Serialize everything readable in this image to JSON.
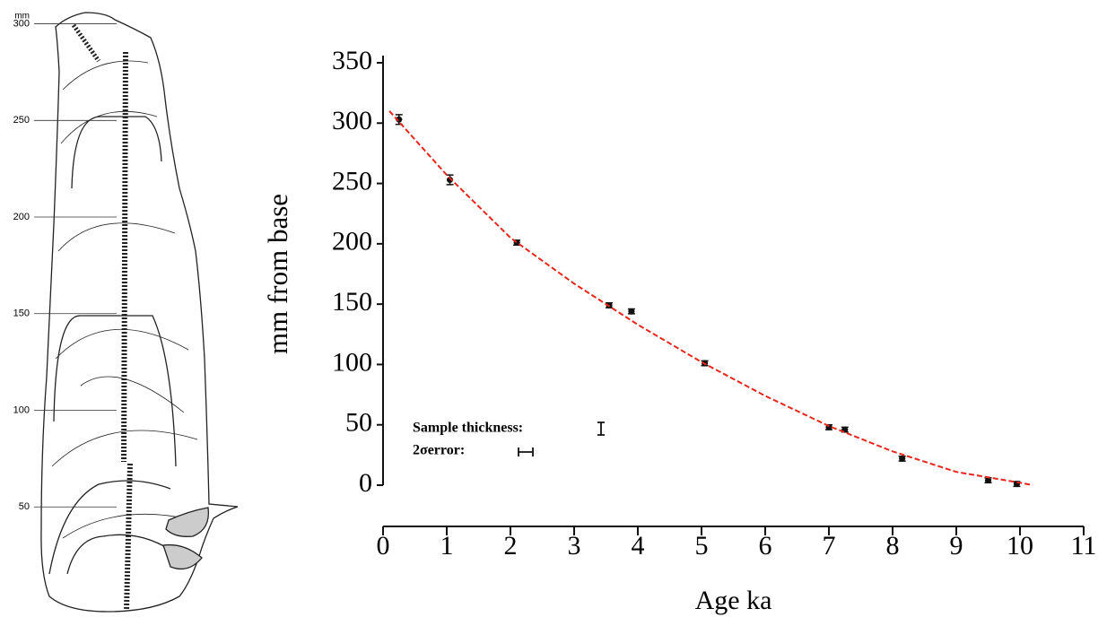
{
  "chart_data": [
    {
      "type": "scale",
      "ylabel": "mm",
      "ylim": [
        0,
        310
      ],
      "yticks": [
        300,
        250,
        200,
        150,
        100,
        50
      ]
    },
    {
      "type": "scatter",
      "xlabel": "Age ka",
      "ylabel": "mm from base",
      "xlim": [
        0,
        11
      ],
      "ylim": [
        0,
        350
      ],
      "xticks": [
        0,
        1,
        2,
        3,
        4,
        5,
        6,
        7,
        8,
        9,
        10,
        11
      ],
      "yticks": [
        0,
        50,
        100,
        150,
        200,
        250,
        300,
        350
      ],
      "series": [
        {
          "type": "scatter",
          "color": "#111111",
          "x": [
            0.25,
            1.05,
            2.1,
            3.55,
            3.9,
            5.05,
            7.0,
            7.25,
            8.15,
            9.5,
            9.95
          ],
          "values": [
            303,
            253,
            201,
            149,
            144,
            101,
            48,
            46,
            22,
            4,
            1
          ],
          "yerr": [
            4,
            4,
            2,
            2,
            2,
            2,
            2,
            2,
            2,
            2,
            2
          ],
          "xerr": [
            0.05,
            0.05,
            0.05,
            0.05,
            0.05,
            0.05,
            0.05,
            0.05,
            0.05,
            0.05,
            0.05
          ]
        },
        {
          "type": "line",
          "color": "#e8261c",
          "dash": true,
          "x": [
            0.1,
            1,
            2,
            3,
            4,
            5,
            6,
            7,
            8,
            9,
            10,
            10.2
          ],
          "values": [
            310,
            257,
            205,
            167,
            133,
            102,
            74,
            49,
            28,
            11,
            2,
            0
          ]
        }
      ],
      "annotations": [
        "Sample thickness:",
        "2σerror:"
      ]
    }
  ]
}
